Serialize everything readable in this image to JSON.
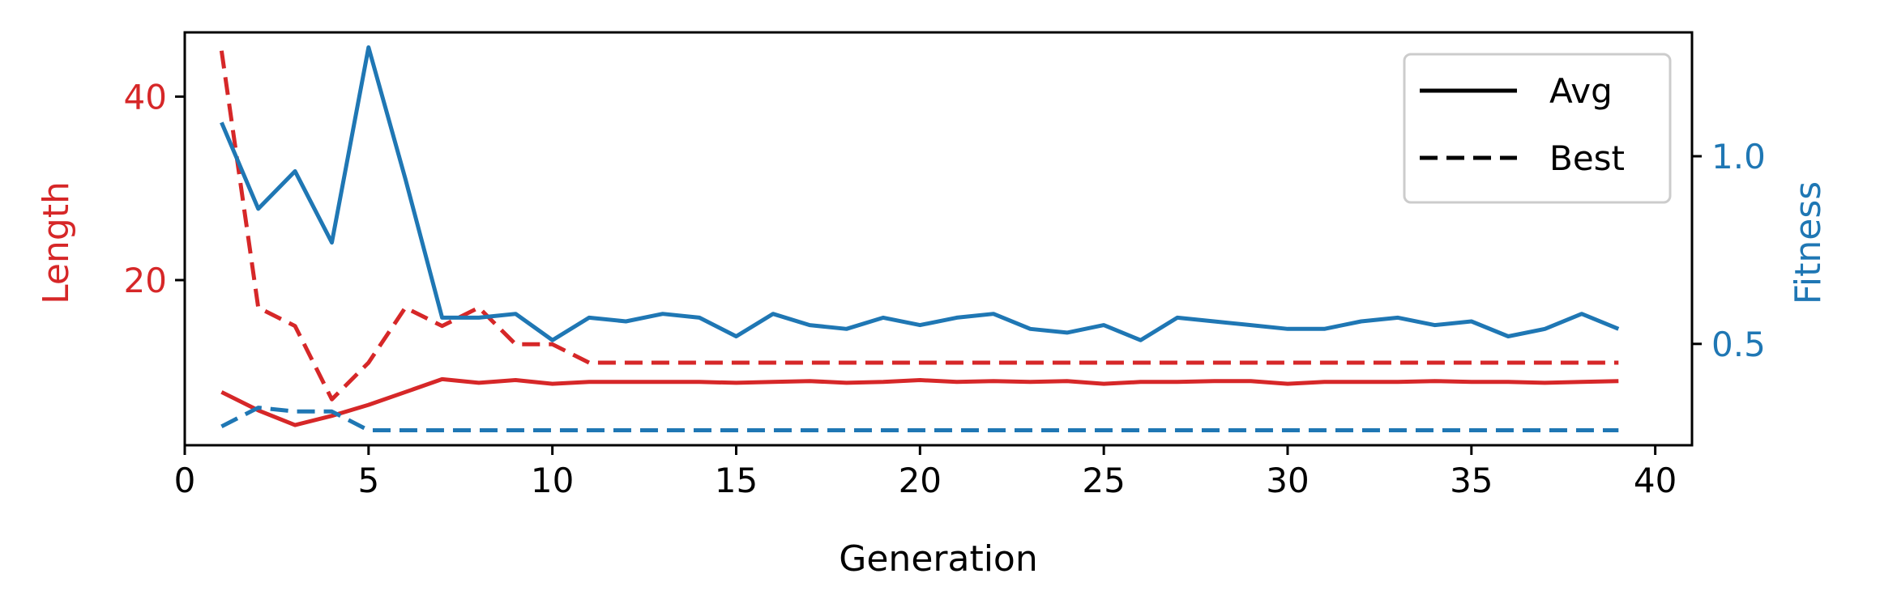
{
  "chart_data": {
    "type": "line",
    "title": "",
    "xlabel": "Generation",
    "ylabel_left": "Length",
    "ylabel_right": "Fitness",
    "xlim": [
      0,
      41
    ],
    "ylim_left": [
      2,
      47
    ],
    "ylim_right": [
      0.23,
      1.33
    ],
    "xticks": [
      0,
      5,
      10,
      15,
      20,
      25,
      30,
      35,
      40
    ],
    "yticks_left": [
      20,
      40
    ],
    "yticks_right": [
      0.5,
      1.0
    ],
    "grid": false,
    "legend_position": "top-right",
    "legend": [
      {
        "label": "Avg",
        "style": "solid"
      },
      {
        "label": "Best",
        "style": "dashed"
      }
    ],
    "colors": {
      "length": "#d62728",
      "fitness": "#1f77b4",
      "axis": "#000000"
    },
    "x": [
      1,
      2,
      3,
      4,
      5,
      6,
      7,
      8,
      9,
      10,
      11,
      12,
      13,
      14,
      15,
      16,
      17,
      18,
      19,
      20,
      21,
      22,
      23,
      24,
      25,
      26,
      27,
      28,
      29,
      30,
      31,
      32,
      33,
      34,
      35,
      36,
      37,
      38,
      39
    ],
    "series": [
      {
        "axis": "left",
        "color": "#d62728",
        "style": "solid",
        "values": [
          7.8,
          5.8,
          4.2,
          5.2,
          6.4,
          7.8,
          9.2,
          8.8,
          9.1,
          8.7,
          8.9,
          8.9,
          8.9,
          8.9,
          8.8,
          8.9,
          9.0,
          8.8,
          8.9,
          9.1,
          8.9,
          9.0,
          8.9,
          9.0,
          8.7,
          8.9,
          8.9,
          9.0,
          9.0,
          8.7,
          8.9,
          8.9,
          8.9,
          9.0,
          8.9,
          8.9,
          8.8,
          8.9,
          9.0
        ]
      },
      {
        "axis": "left",
        "color": "#d62728",
        "style": "dashed",
        "values": [
          45,
          17,
          15,
          7,
          11,
          17,
          15,
          17,
          13,
          13,
          11,
          11,
          11,
          11,
          11,
          11,
          11,
          11,
          11,
          11,
          11,
          11,
          11,
          11,
          11,
          11,
          11,
          11,
          11,
          11,
          11,
          11,
          11,
          11,
          11,
          11,
          11,
          11,
          11
        ]
      },
      {
        "axis": "right",
        "color": "#1f77b4",
        "style": "solid",
        "values": [
          1.09,
          0.86,
          0.96,
          0.77,
          1.29,
          0.94,
          0.57,
          0.57,
          0.58,
          0.51,
          0.57,
          0.56,
          0.58,
          0.57,
          0.52,
          0.58,
          0.55,
          0.54,
          0.57,
          0.55,
          0.57,
          0.58,
          0.54,
          0.53,
          0.55,
          0.51,
          0.57,
          0.56,
          0.55,
          0.54,
          0.54,
          0.56,
          0.57,
          0.55,
          0.56,
          0.52,
          0.54,
          0.58,
          0.54
        ]
      },
      {
        "axis": "right",
        "color": "#1f77b4",
        "style": "dashed",
        "values": [
          0.28,
          0.33,
          0.32,
          0.32,
          0.27,
          0.27,
          0.27,
          0.27,
          0.27,
          0.27,
          0.27,
          0.27,
          0.27,
          0.27,
          0.27,
          0.27,
          0.27,
          0.27,
          0.27,
          0.27,
          0.27,
          0.27,
          0.27,
          0.27,
          0.27,
          0.27,
          0.27,
          0.27,
          0.27,
          0.27,
          0.27,
          0.27,
          0.27,
          0.27,
          0.27,
          0.27,
          0.27,
          0.27,
          0.27
        ]
      }
    ]
  }
}
